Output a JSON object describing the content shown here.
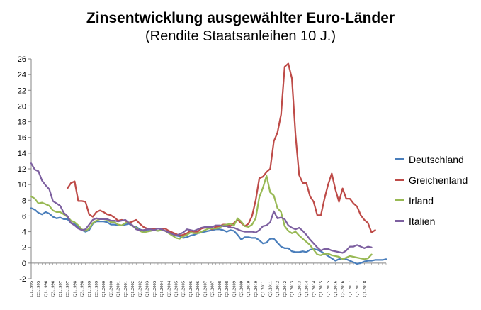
{
  "chart_data": {
    "type": "line",
    "title": "Zinsentwicklung ausgewählter Euro-Länder",
    "subtitle": "(Rendite Staatsanleihen 10 J.)",
    "xlabel": "",
    "ylabel": "",
    "ylim": [
      -2,
      26
    ],
    "yticks": [
      -2,
      0,
      2,
      4,
      6,
      8,
      10,
      12,
      14,
      16,
      18,
      20,
      22,
      24,
      26
    ],
    "grid": false,
    "legend_position": "right",
    "x_tick_labels": [
      "Q1.1995",
      "Q3.1995",
      "Q1.1996",
      "Q3.1996",
      "Q1.1997",
      "Q3.1997",
      "Q1.1998",
      "Q3.1998",
      "Q1.1999",
      "Q3.1999",
      "Q1.2000",
      "Q3.2000",
      "Q1.2001",
      "Q3.2001",
      "Q1.2002",
      "Q3.2002",
      "Q1.2003",
      "Q3.2003",
      "Q1.2004",
      "Q3.2004",
      "Q1.2005",
      "Q3.2005",
      "Q1.2006",
      "Q3.2006",
      "Q1.2007",
      "Q3.2007",
      "Q1.2008",
      "Q3.2008",
      "Q1.2009",
      "Q3.2009",
      "Q1.2010",
      "Q3.2010",
      "Q1.2011",
      "Q3.2011",
      "Q1.2012",
      "Q3.2012",
      "Q1.2013",
      "Q3.2013",
      "Q1.2014",
      "Q3.2014",
      "Q1.2015",
      "Q3.2015",
      "Q1.2016",
      "Q3.2016",
      "Q1.2017",
      "Q3.2017",
      "Q1.2018"
    ],
    "x_start": 1995.0,
    "x_step": 0.25,
    "series": [
      {
        "name": "Deutschland",
        "color": "#4a7ebb",
        "values": [
          7.0,
          6.8,
          6.4,
          6.2,
          6.5,
          6.3,
          5.9,
          5.7,
          5.8,
          5.6,
          5.6,
          5.1,
          5.0,
          4.6,
          4.2,
          4.0,
          4.2,
          5.0,
          5.3,
          5.3,
          5.3,
          5.2,
          4.9,
          4.9,
          4.8,
          4.8,
          4.9,
          5.0,
          4.7,
          4.6,
          4.3,
          4.1,
          4.1,
          4.1,
          4.2,
          4.1,
          4.2,
          4.1,
          3.9,
          3.7,
          3.5,
          3.4,
          3.2,
          3.3,
          3.5,
          3.6,
          3.8,
          3.9,
          4.0,
          4.1,
          4.2,
          4.3,
          4.3,
          4.2,
          4.0,
          4.2,
          4.1,
          3.6,
          3.0,
          3.3,
          3.3,
          3.2,
          3.2,
          2.9,
          2.5,
          2.6,
          3.1,
          3.1,
          2.6,
          2.1,
          1.9,
          1.9,
          1.5,
          1.4,
          1.4,
          1.5,
          1.4,
          1.7,
          1.8,
          1.7,
          1.5,
          1.2,
          0.9,
          0.6,
          0.3,
          0.5,
          0.6,
          0.5,
          0.3,
          0.1,
          -0.1,
          0.0,
          0.2,
          0.3,
          0.3,
          0.4,
          0.4,
          0.4,
          0.5
        ]
      },
      {
        "name": "Greichenland",
        "color": "#be4b48",
        "values": [
          null,
          null,
          null,
          null,
          null,
          null,
          null,
          null,
          null,
          null,
          9.5,
          10.2,
          10.4,
          7.9,
          7.9,
          7.8,
          6.2,
          5.9,
          6.5,
          6.7,
          6.5,
          6.2,
          6.1,
          5.8,
          5.4,
          5.5,
          5.4,
          5.1,
          5.3,
          5.5,
          5.0,
          4.6,
          4.4,
          4.3,
          4.4,
          4.4,
          4.3,
          4.4,
          4.1,
          3.9,
          3.7,
          3.5,
          3.6,
          3.8,
          4.1,
          4.0,
          4.0,
          4.4,
          4.5,
          4.5,
          4.3,
          4.6,
          4.7,
          4.9,
          4.9,
          4.7,
          5.1,
          5.5,
          5.1,
          4.7,
          5.0,
          6.0,
          8.0,
          10.8,
          11.0,
          11.6,
          12.0,
          15.5,
          16.6,
          18.9,
          25.0,
          25.4,
          23.5,
          16.3,
          11.2,
          10.2,
          10.2,
          8.5,
          7.8,
          6.1,
          6.1,
          8.2,
          10.0,
          11.4,
          9.4,
          7.8,
          9.5,
          8.2,
          8.2,
          7.6,
          7.2,
          6.1,
          5.5,
          5.1,
          3.9,
          4.2
        ]
      },
      {
        "name": "Irland",
        "color": "#98b954",
        "values": [
          8.5,
          8.2,
          7.6,
          7.7,
          7.5,
          7.3,
          6.7,
          6.5,
          6.5,
          6.2,
          5.9,
          5.4,
          5.2,
          4.8,
          4.3,
          4.1,
          4.4,
          5.1,
          5.4,
          5.6,
          5.6,
          5.5,
          5.2,
          5.2,
          4.9,
          4.8,
          5.1,
          5.2,
          4.7,
          4.5,
          4.1,
          3.9,
          4.0,
          4.1,
          4.2,
          4.1,
          4.2,
          4.1,
          3.8,
          3.5,
          3.2,
          3.1,
          3.4,
          3.6,
          3.9,
          3.8,
          3.8,
          4.0,
          4.2,
          4.4,
          4.4,
          4.4,
          4.5,
          4.8,
          4.9,
          5.0,
          4.8,
          5.7,
          5.3,
          4.7,
          4.6,
          4.9,
          5.7,
          8.4,
          9.6,
          11.1,
          9.0,
          8.6,
          7.0,
          6.5,
          4.7,
          4.1,
          3.8,
          4.0,
          3.5,
          3.1,
          2.7,
          2.3,
          1.7,
          1.1,
          1.0,
          1.2,
          1.2,
          1.0,
          0.9,
          0.8,
          0.5,
          0.7,
          0.9,
          0.8,
          0.7,
          0.6,
          0.5,
          0.6,
          1.1
        ]
      },
      {
        "name": "Italien",
        "color": "#7d60a0",
        "values": [
          12.7,
          11.9,
          11.7,
          10.5,
          9.9,
          9.4,
          7.9,
          7.6,
          7.3,
          6.4,
          6.0,
          5.1,
          4.8,
          4.4,
          4.2,
          4.3,
          4.9,
          5.5,
          5.7,
          5.6,
          5.6,
          5.6,
          5.4,
          5.4,
          5.3,
          5.4,
          5.5,
          5.1,
          4.8,
          4.3,
          4.2,
          4.2,
          4.3,
          4.3,
          4.2,
          4.4,
          4.3,
          4.1,
          3.9,
          3.7,
          3.5,
          3.7,
          3.9,
          4.3,
          4.2,
          4.1,
          4.3,
          4.5,
          4.6,
          4.6,
          4.6,
          4.8,
          4.8,
          4.7,
          4.7,
          4.5,
          4.5,
          4.3,
          4.1,
          4.0,
          4.0,
          4.0,
          3.9,
          4.2,
          4.7,
          4.8,
          5.2,
          6.6,
          5.7,
          5.8,
          5.6,
          4.8,
          4.5,
          4.3,
          4.5,
          4.1,
          3.6,
          3.0,
          2.5,
          2.0,
          1.6,
          1.8,
          1.8,
          1.6,
          1.5,
          1.4,
          1.3,
          1.6,
          2.1,
          2.1,
          2.3,
          2.1,
          1.9,
          2.1,
          2.0
        ]
      }
    ]
  }
}
